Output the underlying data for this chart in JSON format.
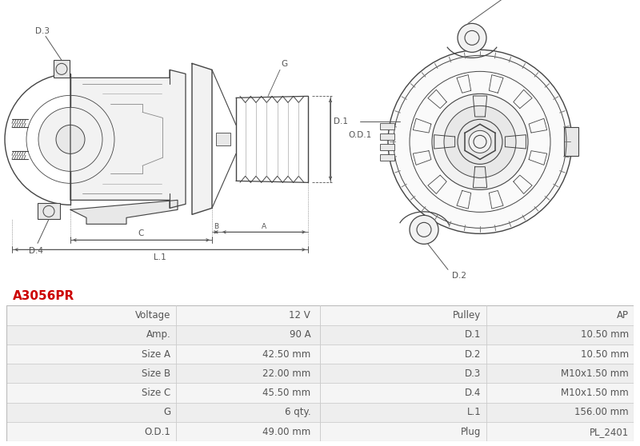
{
  "title": "A3056PR",
  "title_color": "#cc0000",
  "bg_color": "#ffffff",
  "table_rows": [
    [
      "Voltage",
      "12 V",
      "Pulley",
      "AP"
    ],
    [
      "Amp.",
      "90 A",
      "D.1",
      "10.50 mm"
    ],
    [
      "Size A",
      "42.50 mm",
      "D.2",
      "10.50 mm"
    ],
    [
      "Size B",
      "22.00 mm",
      "D.3",
      "M10x1.50 mm"
    ],
    [
      "Size C",
      "45.50 mm",
      "D.4",
      "M10x1.50 mm"
    ],
    [
      "G",
      "6 qty.",
      "L.1",
      "156.00 mm"
    ],
    [
      "O.D.1",
      "49.00 mm",
      "Plug",
      "PL_2401"
    ]
  ],
  "line_color": "#444444",
  "dim_color": "#555555",
  "fill_light": "#f2f2f2",
  "fill_medium": "#e8e8e8",
  "text_color": "#555555",
  "row_bg_odd": "#f5f5f5",
  "row_bg_even": "#eeeeee",
  "line_color_table": "#cccccc",
  "font_size": 8.5
}
